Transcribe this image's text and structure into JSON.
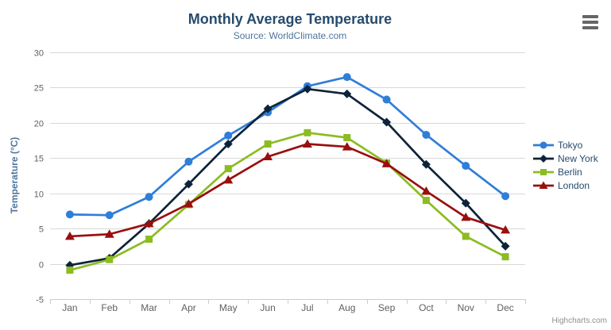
{
  "title": "Monthly Average Temperature",
  "subtitle": "Source: WorldClimate.com",
  "credits": "Highcharts.com",
  "theme": {
    "title_color": "#274b6d",
    "subtitle_color": "#4d759e",
    "axis_title_color": "#4d759e",
    "tick_label_color": "#606060",
    "grid_color": "#d8d8d8",
    "axis_line_color": "#c0d0e0",
    "legend_text_color": "#274b6d",
    "menu_icon_color": "#666666",
    "credits_color": "#909090",
    "background": "#ffffff"
  },
  "chart_data": {
    "type": "line",
    "title": "Monthly Average Temperature",
    "subtitle": "Source: WorldClimate.com",
    "xlabel": "",
    "ylabel": "Temperature (°C)",
    "ylim": [
      -5,
      30
    ],
    "yticks": [
      -5,
      0,
      5,
      10,
      15,
      20,
      25,
      30
    ],
    "grid": true,
    "legend_position": "right",
    "categories": [
      "Jan",
      "Feb",
      "Mar",
      "Apr",
      "May",
      "Jun",
      "Jul",
      "Aug",
      "Sep",
      "Oct",
      "Nov",
      "Dec"
    ],
    "series": [
      {
        "name": "Tokyo",
        "color": "#2f7ed8",
        "marker": "circle",
        "values": [
          7.0,
          6.9,
          9.5,
          14.5,
          18.2,
          21.5,
          25.2,
          26.5,
          23.3,
          18.3,
          13.9,
          9.6
        ]
      },
      {
        "name": "New York",
        "color": "#0d233a",
        "marker": "diamond",
        "values": [
          -0.2,
          0.8,
          5.7,
          11.3,
          17.0,
          22.0,
          24.8,
          24.1,
          20.1,
          14.1,
          8.6,
          2.5
        ]
      },
      {
        "name": "Berlin",
        "color": "#8bbc21",
        "marker": "square",
        "values": [
          -0.9,
          0.6,
          3.5,
          8.4,
          13.5,
          17.0,
          18.6,
          17.9,
          14.3,
          9.0,
          3.9,
          1.0
        ]
      },
      {
        "name": "London",
        "color": "#990f0f",
        "marker": "triangle",
        "values": [
          3.9,
          4.2,
          5.7,
          8.5,
          11.9,
          15.2,
          17.0,
          16.6,
          14.2,
          10.3,
          6.6,
          4.8
        ]
      }
    ]
  }
}
